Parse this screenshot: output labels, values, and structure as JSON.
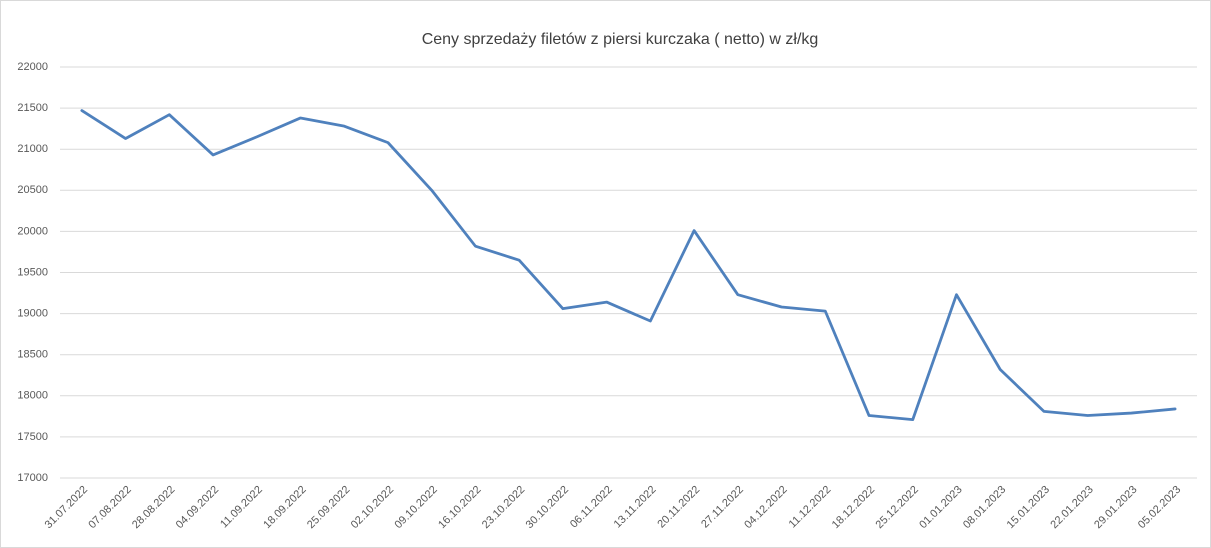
{
  "chart_data": {
    "type": "line",
    "title": "Ceny sprzedaży filetów z piersi kurczaka ( netto) w zł/kg",
    "categories": [
      "31.07.2022",
      "07.08.2022",
      "28.08.2022",
      "04.09.2022",
      "11.09.2022",
      "18.09.2022",
      "25.09.2022",
      "02.10.2022",
      "09.10.2022",
      "16.10.2022",
      "23.10.2022",
      "30.10.2022",
      "06.11.2022",
      "13.11.2022",
      "20.11.2022",
      "27.11.2022",
      "04.12.2022",
      "11.12.2022",
      "18.12.2022",
      "25.12.2022",
      "01.01.2023",
      "08.01.2023",
      "15.01.2023",
      "22.01.2023",
      "29.01.2023",
      "05.02.2023"
    ],
    "values": [
      21470,
      21130,
      21420,
      20930,
      21150,
      21380,
      21280,
      21080,
      20500,
      19820,
      19650,
      19060,
      19140,
      18910,
      20010,
      19230,
      19080,
      19030,
      17760,
      17710,
      19230,
      18320,
      17810,
      17760,
      17790,
      17840
    ],
    "color": "#4f81bd",
    "ylim": [
      17000,
      22000
    ],
    "yticks": [
      17000,
      17500,
      18000,
      18500,
      19000,
      19500,
      20000,
      20500,
      21000,
      21500,
      22000
    ],
    "grid": true
  }
}
